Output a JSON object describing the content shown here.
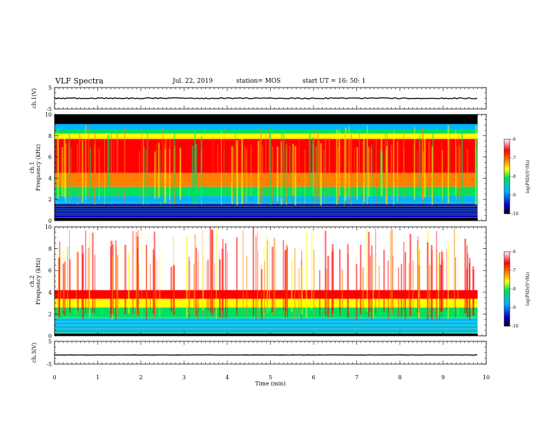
{
  "header": {
    "title": "VLF Spectra",
    "date": "Jul. 22, 2019",
    "station": "station= MOS",
    "start_ut": "start UT =  16: 50: 1"
  },
  "chart_data": [
    {
      "id": "ch1-voltage",
      "type": "line",
      "ylabel": "ch.1(V)",
      "ylim": [
        -5,
        5
      ],
      "yticks": [
        "5",
        "-5"
      ],
      "xlim": [
        0,
        10
      ],
      "baseline_value": 0,
      "data_end_x": 9.8
    },
    {
      "id": "ch1-spectrogram",
      "type": "heatmap",
      "ylabel": "ch.1",
      "ylabel2": "Frequency (kHz)",
      "ylim": [
        0,
        10
      ],
      "yticks": [
        "0",
        "2",
        "4",
        "6",
        "8",
        "10"
      ],
      "xlim": [
        0,
        10
      ],
      "data_end_x": 9.8,
      "colorbar": {
        "label": "log(PSD)(V²/Hz)",
        "range": [
          -10,
          -6
        ],
        "ticks": [
          "-6",
          "-7",
          "-8",
          "-9",
          "-10"
        ],
        "colors": [
          "#000000",
          "#0000cc",
          "#00b4ff",
          "#00e060",
          "#ffff00",
          "#ff8000",
          "#ff0000",
          "#ffffff"
        ]
      }
    },
    {
      "id": "ch2-spectrogram",
      "type": "heatmap",
      "ylabel": "ch.2",
      "ylabel2": "Frequency (kHz)",
      "ylim": [
        0,
        10
      ],
      "yticks": [
        "0",
        "2",
        "4",
        "6",
        "8",
        "10"
      ],
      "xlim": [
        0,
        10
      ],
      "data_end_x": 9.8,
      "colorbar": {
        "label": "log(PSD)(V²/Hz)",
        "range": [
          -10,
          -6
        ],
        "ticks": [
          "-6",
          "-7",
          "-8",
          "-9",
          "-10"
        ],
        "colors": [
          "#000000",
          "#0000cc",
          "#00b4ff",
          "#00e060",
          "#ffff00",
          "#ff8000",
          "#ff0000",
          "#ffffff"
        ]
      }
    },
    {
      "id": "ch3-voltage",
      "type": "line",
      "ylabel": "ch.3(V)",
      "ylim": [
        -5,
        5
      ],
      "yticks": [
        "5",
        "-5"
      ],
      "xlim": [
        0,
        10
      ],
      "baseline_value": -1,
      "data_end_x": 9.8
    }
  ],
  "x_axis": {
    "label": "Time (min)",
    "ticks": [
      "0",
      "1",
      "2",
      "3",
      "4",
      "5",
      "6",
      "7",
      "8",
      "9",
      "10"
    ]
  }
}
